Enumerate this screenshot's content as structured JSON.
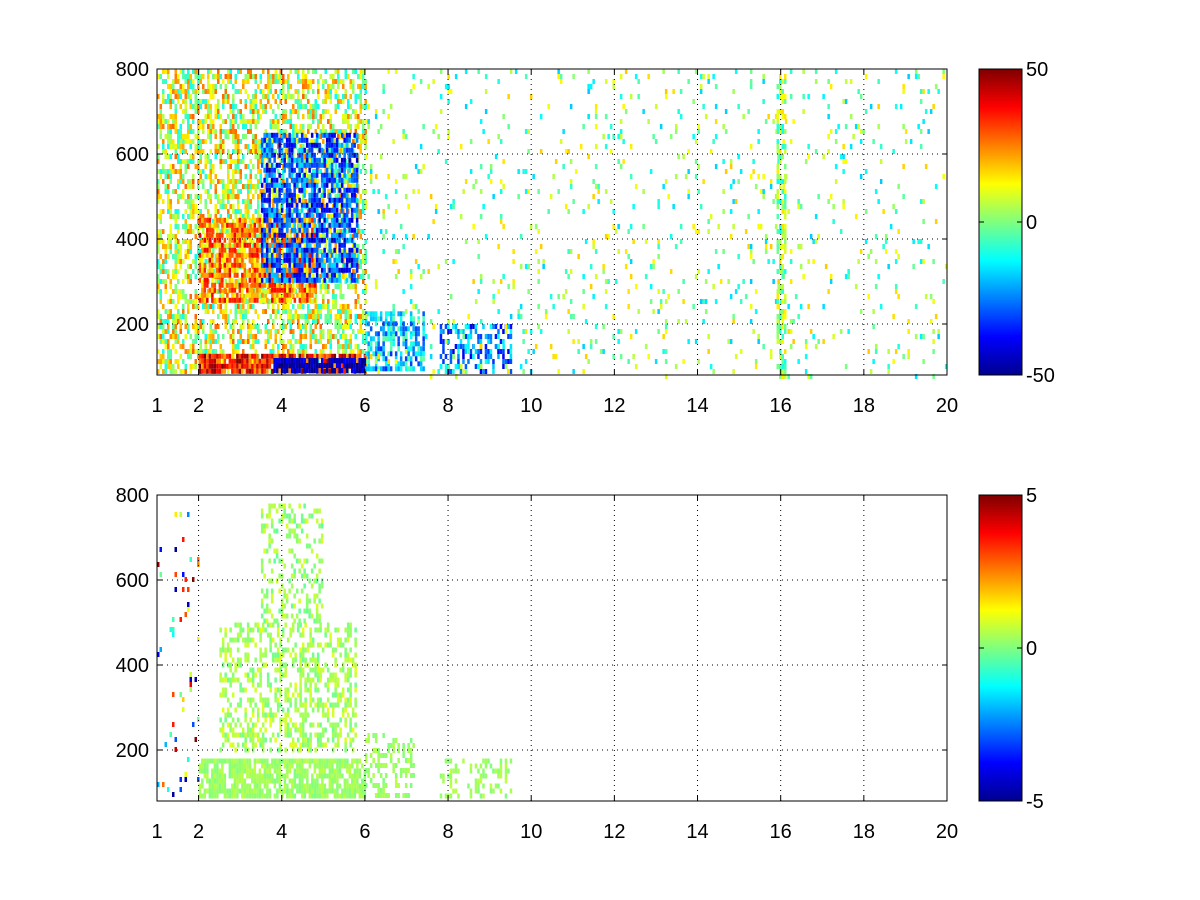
{
  "colormap": [
    "#00008f",
    "#0000ff",
    "#007fff",
    "#00ffff",
    "#7fff7f",
    "#ffff00",
    "#ff7f00",
    "#ff0000",
    "#7f0000"
  ],
  "chart_data": [
    {
      "type": "heatmap",
      "title": "",
      "xlabel": "",
      "ylabel": "",
      "xlim": [
        1,
        20
      ],
      "ylim": [
        80,
        800
      ],
      "xticks": [
        1,
        2,
        4,
        6,
        8,
        10,
        12,
        14,
        16,
        18,
        20
      ],
      "yticks": [
        200,
        400,
        600,
        800
      ],
      "grid": true,
      "colorbar": {
        "range": [
          -50,
          50
        ],
        "ticks": [
          50,
          0,
          -50
        ],
        "colormap": "jet"
      },
      "features": [
        {
          "x": [
            1,
            6
          ],
          "y": [
            90,
            800
          ],
          "value": 8,
          "density": 0.55,
          "jitter": 20
        },
        {
          "x": [
            2,
            6
          ],
          "y": [
            90,
            130
          ],
          "value": 35,
          "density": 0.9,
          "jitter": 15
        },
        {
          "x": [
            3.8,
            6
          ],
          "y": [
            90,
            120
          ],
          "value": -45,
          "density": 0.85,
          "jitter": 8
        },
        {
          "x": [
            2,
            4.8
          ],
          "y": [
            250,
            450
          ],
          "value": 25,
          "density": 0.75,
          "jitter": 15
        },
        {
          "x": [
            3.5,
            5.8
          ],
          "y": [
            300,
            650
          ],
          "value": -30,
          "density": 0.65,
          "jitter": 15
        },
        {
          "x": [
            6,
            7.4
          ],
          "y": [
            90,
            230
          ],
          "value": -18,
          "density": 0.6,
          "jitter": 15
        },
        {
          "x": [
            7.8,
            9.5
          ],
          "y": [
            90,
            200
          ],
          "value": -25,
          "density": 0.5,
          "jitter": 15
        },
        {
          "x": [
            6,
            20
          ],
          "y": [
            80,
            800
          ],
          "value": 0,
          "density": 0.06,
          "jitter": 18
        },
        {
          "x": [
            15.9,
            16.1
          ],
          "y": [
            80,
            800
          ],
          "value": 2,
          "density": 0.6,
          "jitter": 14
        }
      ]
    },
    {
      "type": "heatmap",
      "title": "",
      "xlabel": "",
      "ylabel": "",
      "xlim": [
        1,
        20
      ],
      "ylim": [
        80,
        800
      ],
      "xticks": [
        1,
        2,
        4,
        6,
        8,
        10,
        12,
        14,
        16,
        18,
        20
      ],
      "yticks": [
        200,
        400,
        600,
        800
      ],
      "grid": true,
      "colorbar": {
        "range": [
          -5,
          5
        ],
        "ticks": [
          5,
          0,
          -5
        ],
        "colormap": "jet"
      },
      "features": [
        {
          "x": [
            2,
            6
          ],
          "y": [
            90,
            180
          ],
          "value": 0.3,
          "density": 0.8,
          "jitter": 0.3
        },
        {
          "x": [
            2.5,
            5.8
          ],
          "y": [
            200,
            500
          ],
          "value": 0.4,
          "density": 0.45,
          "jitter": 0.6
        },
        {
          "x": [
            3.5,
            5
          ],
          "y": [
            500,
            780
          ],
          "value": 0.3,
          "density": 0.3,
          "jitter": 0.6
        },
        {
          "x": [
            6,
            7.2
          ],
          "y": [
            90,
            240
          ],
          "value": 0.3,
          "density": 0.4,
          "jitter": 0.3
        },
        {
          "x": [
            7.8,
            9.5
          ],
          "y": [
            90,
            180
          ],
          "value": 0.3,
          "density": 0.3,
          "jitter": 0.3
        },
        {
          "x": [
            1,
            2
          ],
          "y": [
            100,
            760
          ],
          "value": 0,
          "density": 0.05,
          "jitter": 5
        }
      ]
    }
  ]
}
